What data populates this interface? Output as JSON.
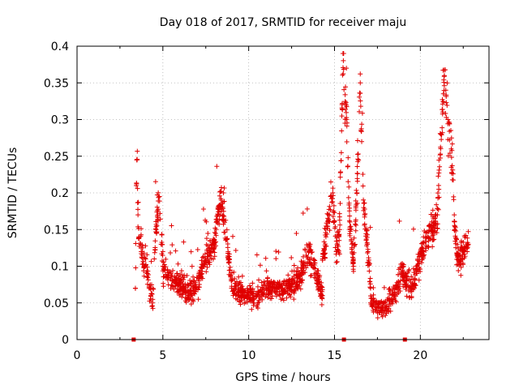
{
  "chart_data": {
    "type": "scatter",
    "title": "Day 018 of 2017, SRMTID for receiver maju",
    "xlabel": "GPS time / hours",
    "ylabel": "SRMTID / TECUs",
    "xlim": [
      0,
      24
    ],
    "ylim": [
      0,
      0.4
    ],
    "xticks": [
      0,
      5,
      10,
      15,
      20
    ],
    "xtick_labels": [
      "0",
      "5",
      "10",
      "15",
      "20"
    ],
    "yticks": [
      0,
      0.05,
      0.1,
      0.15,
      0.2,
      0.25,
      0.3,
      0.35,
      0.4
    ],
    "ytick_labels": [
      "0",
      "0.05",
      "0.1",
      "0.15",
      "0.2",
      "0.25",
      "0.3",
      "0.35",
      "0.4"
    ],
    "grid": true,
    "marker": "plus",
    "color": "#e00000",
    "x_range": [
      3.4,
      22.8
    ],
    "gap_markers_x": [
      3.3,
      15.55,
      19.1
    ],
    "segments": [
      {
        "x": [
          3.4,
          3.45,
          3.5,
          3.55,
          3.6,
          3.7,
          3.8,
          3.9,
          4.0,
          4.1,
          4.2,
          4.3,
          4.4,
          4.5,
          4.6,
          4.7,
          4.8,
          4.9,
          5.0
        ],
        "y": [
          0.07,
          0.21,
          0.245,
          0.17,
          0.14,
          0.13,
          0.12,
          0.1,
          0.11,
          0.09,
          0.07,
          0.06,
          0.05,
          0.11,
          0.15,
          0.17,
          0.195,
          0.13,
          0.12
        ]
      },
      {
        "x": [
          5.0,
          5.3,
          5.6,
          5.9,
          6.2,
          6.5,
          6.8,
          7.1,
          7.4,
          7.7,
          8.0,
          8.2,
          8.4,
          8.6,
          8.8,
          9.0
        ],
        "y": [
          0.1,
          0.085,
          0.08,
          0.075,
          0.07,
          0.065,
          0.07,
          0.08,
          0.1,
          0.115,
          0.13,
          0.17,
          0.19,
          0.16,
          0.12,
          0.08
        ]
      },
      {
        "x": [
          9.0,
          9.5,
          10.0,
          10.5,
          11.0,
          11.5,
          12.0,
          12.5,
          13.0,
          13.2,
          13.5,
          14.0,
          14.3
        ],
        "y": [
          0.07,
          0.065,
          0.06,
          0.062,
          0.07,
          0.072,
          0.068,
          0.075,
          0.08,
          0.1,
          0.12,
          0.08,
          0.06
        ]
      },
      {
        "x": [
          14.3,
          14.5,
          14.7,
          14.9,
          15.1,
          15.3,
          15.5,
          15.7,
          15.9,
          16.1,
          16.3,
          16.5,
          16.7,
          16.9,
          17.1
        ],
        "y": [
          0.11,
          0.14,
          0.17,
          0.2,
          0.12,
          0.15,
          0.39,
          0.3,
          0.15,
          0.1,
          0.2,
          0.35,
          0.18,
          0.13,
          0.07
        ]
      },
      {
        "x": [
          17.1,
          17.4,
          17.7,
          18.0,
          18.3,
          18.6,
          18.9,
          19.2,
          19.5,
          19.8
        ],
        "y": [
          0.05,
          0.045,
          0.04,
          0.045,
          0.055,
          0.07,
          0.09,
          0.08,
          0.07,
          0.09
        ]
      },
      {
        "x": [
          19.8,
          20.1,
          20.4,
          20.7,
          21.0,
          21.2,
          21.4,
          21.6,
          21.8,
          22.0,
          22.2,
          22.5,
          22.8
        ],
        "y": [
          0.1,
          0.12,
          0.14,
          0.15,
          0.17,
          0.28,
          0.36,
          0.3,
          0.26,
          0.15,
          0.11,
          0.12,
          0.13
        ]
      }
    ],
    "points_per_segment": [
      120,
      380,
      500,
      260,
      220,
      280
    ]
  }
}
